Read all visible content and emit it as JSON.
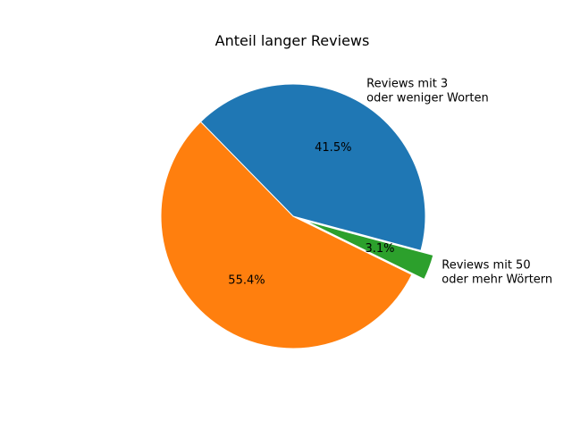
{
  "chart_data": {
    "type": "pie",
    "title": "Anteil langer Reviews",
    "slices": [
      {
        "label": [
          "Reviews mit 3",
          "oder weniger Worten"
        ],
        "value": 41.5,
        "pct_label": "41.5%",
        "color": "#1f77b4",
        "explode": 0
      },
      {
        "label": [],
        "value": 55.4,
        "pct_label": "55.4%",
        "color": "#ff7f0e",
        "explode": 0
      },
      {
        "label": [
          "Reviews mit 50",
          "oder mehr Wörtern"
        ],
        "value": 3.1,
        "pct_label": "3.1%",
        "color": "#2ca02c",
        "explode": 0.1
      }
    ],
    "start_angle_deg": -15,
    "direction": "counterclockwise"
  }
}
